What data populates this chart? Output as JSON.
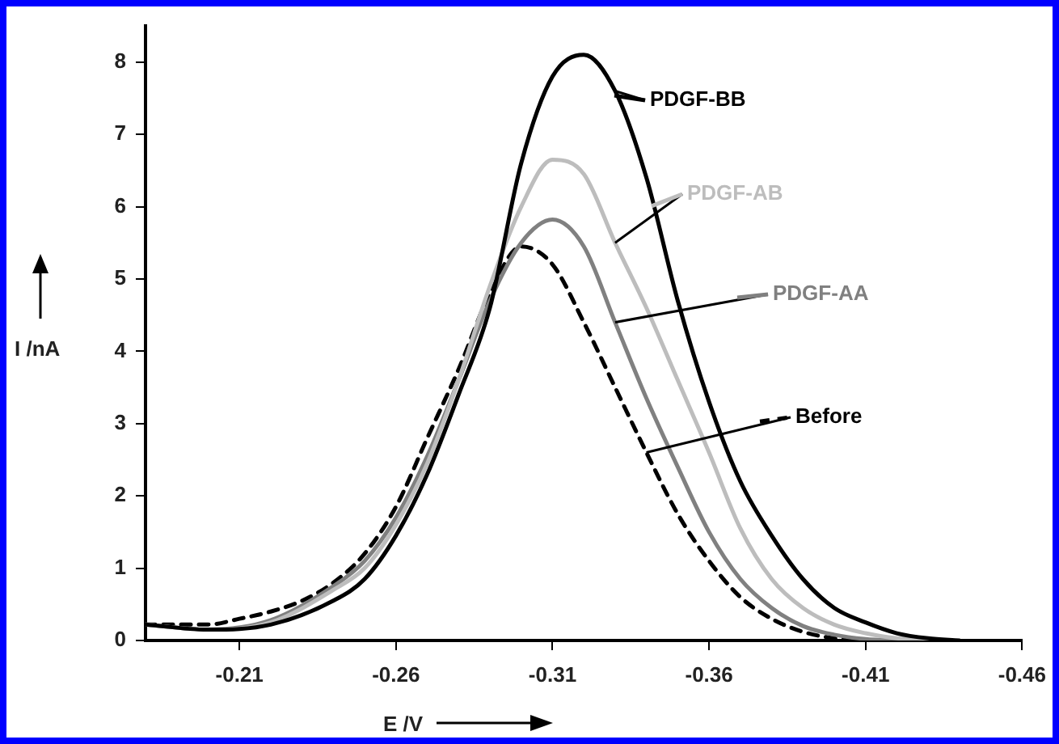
{
  "chart_data": {
    "type": "line",
    "xlabel": "E /V",
    "ylabel": "I /nA",
    "xlim": [
      -0.18,
      -0.46
    ],
    "xticks": [
      -0.21,
      -0.26,
      -0.31,
      -0.36,
      -0.41,
      -0.46
    ],
    "ylim": [
      0,
      8.5
    ],
    "yticks": [
      0,
      1,
      2,
      3,
      4,
      5,
      6,
      7,
      8
    ],
    "grid": false,
    "legend": "right",
    "marker": "none",
    "series": [
      {
        "name": "PDGF-BB",
        "color": "#000000",
        "line_style": "solid",
        "x": [
          -0.18,
          -0.2,
          -0.22,
          -0.24,
          -0.25,
          -0.26,
          -0.27,
          -0.28,
          -0.29,
          -0.3,
          -0.31,
          -0.32,
          -0.33,
          -0.34,
          -0.35,
          -0.36,
          -0.37,
          -0.38,
          -0.39,
          -0.4,
          -0.41,
          -0.42,
          -0.43,
          -0.44
        ],
        "values": [
          0.22,
          0.15,
          0.22,
          0.55,
          0.85,
          1.45,
          2.3,
          3.4,
          4.6,
          6.6,
          7.8,
          8.1,
          7.6,
          6.4,
          4.7,
          3.3,
          2.2,
          1.45,
          0.85,
          0.45,
          0.25,
          0.1,
          0.03,
          0
        ]
      },
      {
        "name": "PDGF-AB",
        "color": "#bdbdbd",
        "line_style": "solid",
        "x": [
          -0.18,
          -0.2,
          -0.22,
          -0.24,
          -0.25,
          -0.26,
          -0.27,
          -0.28,
          -0.29,
          -0.3,
          -0.31,
          -0.32,
          -0.33,
          -0.34,
          -0.35,
          -0.36,
          -0.37,
          -0.38,
          -0.39,
          -0.4,
          -0.41,
          -0.42,
          -0.43
        ],
        "values": [
          0.22,
          0.15,
          0.25,
          0.7,
          1.0,
          1.6,
          2.45,
          3.6,
          4.9,
          6.0,
          6.65,
          6.45,
          5.5,
          4.6,
          3.6,
          2.6,
          1.55,
          0.85,
          0.45,
          0.22,
          0.1,
          0.03,
          0
        ]
      },
      {
        "name": "PDGF-AA",
        "color": "#808080",
        "line_style": "solid",
        "x": [
          -0.18,
          -0.2,
          -0.22,
          -0.24,
          -0.25,
          -0.26,
          -0.27,
          -0.28,
          -0.29,
          -0.3,
          -0.31,
          -0.32,
          -0.33,
          -0.34,
          -0.35,
          -0.36,
          -0.37,
          -0.38,
          -0.39,
          -0.4,
          -0.41,
          -0.42
        ],
        "values": [
          0.22,
          0.15,
          0.28,
          0.75,
          1.1,
          1.7,
          2.55,
          3.6,
          4.7,
          5.5,
          5.82,
          5.45,
          4.4,
          3.35,
          2.4,
          1.5,
          0.85,
          0.45,
          0.2,
          0.08,
          0.02,
          0
        ]
      },
      {
        "name": "Before",
        "color": "#000000",
        "line_style": "dashed",
        "x": [
          -0.18,
          -0.2,
          -0.21,
          -0.22,
          -0.23,
          -0.24,
          -0.25,
          -0.26,
          -0.27,
          -0.28,
          -0.29,
          -0.3,
          -0.31,
          -0.32,
          -0.33,
          -0.34,
          -0.35,
          -0.36,
          -0.37,
          -0.38,
          -0.39,
          -0.4,
          -0.41
        ],
        "values": [
          0.22,
          0.22,
          0.3,
          0.4,
          0.55,
          0.8,
          1.2,
          1.85,
          2.8,
          3.75,
          4.8,
          5.45,
          5.2,
          4.4,
          3.5,
          2.6,
          1.75,
          1.1,
          0.6,
          0.3,
          0.12,
          0.03,
          0
        ]
      }
    ]
  }
}
